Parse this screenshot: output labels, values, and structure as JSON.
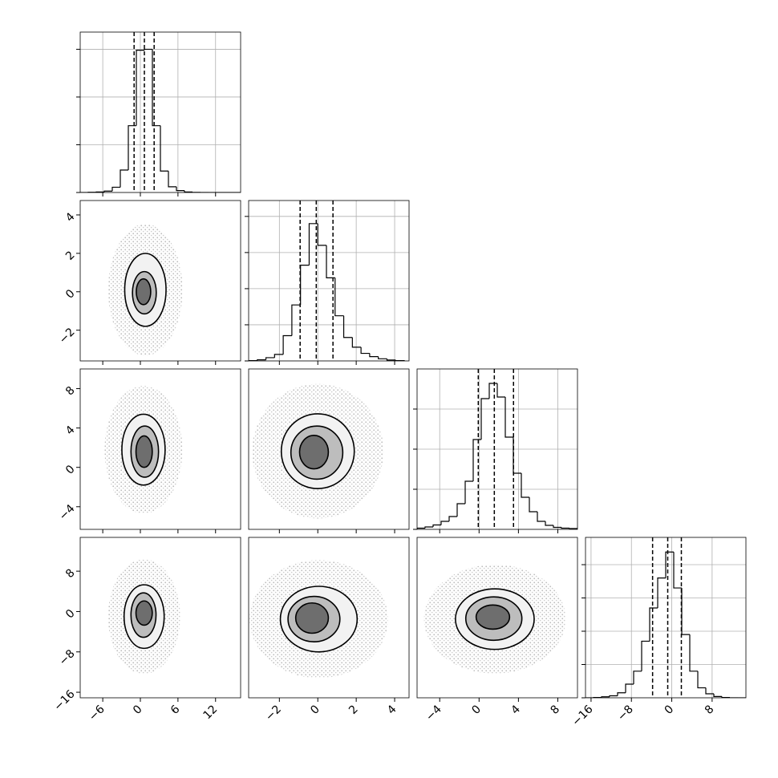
{
  "chart_data": {
    "type": "corner",
    "grid": true,
    "color": "#000000",
    "variables": [
      {
        "xlim": [
          -9.6,
          16
        ],
        "ticks": [
          {
            "value": -6,
            "label": "−6"
          },
          0,
          6,
          12
        ],
        "bins": [
          -9.6,
          -8.32,
          -7.04,
          -5.76,
          -4.48,
          -3.2,
          -1.92,
          -0.64,
          0.64,
          1.92,
          3.2,
          4.48,
          5.76,
          7.04,
          8.32,
          9.6,
          10.88,
          12.16,
          13.44,
          14.72,
          16.0
        ],
        "counts": [
          0,
          5,
          10,
          30,
          110,
          470,
          1400,
          2980,
          3000,
          1400,
          450,
          120,
          40,
          10,
          3,
          0,
          0,
          0,
          0,
          0
        ],
        "quantiles": [
          -1.0,
          0.64,
          2.2
        ],
        "hist_ylim": [
          0,
          3360
        ],
        "hist_ticks": [
          0,
          1000,
          2000,
          3000
        ]
      },
      {
        "xlim": [
          -3.6,
          4.75
        ],
        "ticks": [
          {
            "value": -2,
            "label": "−2"
          },
          0,
          2,
          4
        ],
        "bins": [
          -3.6,
          -3.15,
          -2.7,
          -2.25,
          -1.8,
          -1.35,
          -0.9,
          -0.45,
          0,
          0.45,
          0.9,
          1.35,
          1.8,
          2.25,
          2.7,
          3.15,
          3.6,
          4.05,
          4.5
        ],
        "counts": [
          10,
          30,
          90,
          180,
          700,
          1550,
          2650,
          3800,
          3200,
          2300,
          1250,
          650,
          380,
          210,
          120,
          60,
          25,
          10
        ],
        "quantiles": [
          -0.92,
          -0.08,
          0.79
        ],
        "hist_ylim": [
          0,
          4440
        ],
        "hist_ticks": [
          0,
          1000,
          2000,
          3000,
          4000
        ]
      },
      {
        "xlim": [
          -6.3,
          10
        ],
        "ticks": [
          {
            "value": -4,
            "label": "−4"
          },
          0,
          4,
          8
        ],
        "bins": [
          -6.3,
          -5.485,
          -4.67,
          -3.855,
          -3.04,
          -2.225,
          -1.41,
          -0.595,
          0.22,
          1.035,
          1.85,
          2.665,
          3.48,
          4.295,
          5.11,
          5.925,
          6.74,
          7.555,
          8.37,
          9.185,
          10.0
        ],
        "counts": [
          30,
          60,
          110,
          200,
          320,
          640,
          1200,
          2240,
          3260,
          3640,
          3300,
          2300,
          1400,
          800,
          440,
          200,
          100,
          50,
          30,
          20
        ],
        "quantiles": [
          -0.08,
          1.55,
          3.5
        ],
        "hist_ylim": [
          0,
          4000
        ],
        "hist_ticks": [
          0,
          1000,
          2000,
          3000
        ]
      },
      {
        "xlim": [
          -17.1,
          14.7
        ],
        "ticks": [
          {
            "value": -16,
            "label": "−16"
          },
          {
            "value": -8,
            "label": "−8"
          },
          0,
          8
        ],
        "bins": [
          -17.1,
          -15.51,
          -13.92,
          -12.33,
          -10.74,
          -9.15,
          -7.56,
          -5.97,
          -4.38,
          -2.79,
          -1.2,
          0.39,
          1.98,
          3.57,
          5.16,
          6.75,
          8.34,
          9.93,
          11.52,
          13.11,
          14.7
        ],
        "counts": [
          0,
          10,
          30,
          60,
          150,
          410,
          800,
          1700,
          2700,
          3600,
          4380,
          3300,
          1900,
          800,
          300,
          120,
          40,
          10,
          0,
          0
        ],
        "quantiles": [
          -3.8,
          -0.8,
          1.9
        ],
        "hist_ylim": [
          0,
          4820
        ],
        "hist_ticks": [
          0,
          1000,
          2000,
          3000,
          4000
        ]
      }
    ],
    "pairs": [
      [
        [
          {
            "cx": 0.8,
            "cy": 0.1,
            "rx": 3.3,
            "ry": 1.9
          },
          {
            "cx": 0.64,
            "cy": -0.05,
            "rx": 1.9,
            "ry": 1.1
          },
          {
            "cx": 0.5,
            "cy": 0.0,
            "rx": 1.15,
            "ry": 0.67
          }
        ]
      ],
      [
        [
          {
            "cx": 0.5,
            "cy": 1.8,
            "rx": 3.45,
            "ry": 3.6
          },
          {
            "cx": 0.7,
            "cy": 1.6,
            "rx": 2.2,
            "ry": 2.6
          },
          {
            "cx": 0.6,
            "cy": 1.6,
            "rx": 1.3,
            "ry": 1.6
          }
        ],
        [
          {
            "cx": 0.0,
            "cy": 1.64,
            "rx": 1.9,
            "ry": 3.8
          },
          {
            "cx": -0.05,
            "cy": 1.5,
            "rx": 1.35,
            "ry": 2.7
          },
          {
            "cx": -0.2,
            "cy": 1.55,
            "rx": 0.75,
            "ry": 1.7
          }
        ]
      ],
      [
        [
          {
            "cx": 0.6,
            "cy": -1.0,
            "rx": 3.2,
            "ry": 6.3
          },
          {
            "cx": 0.5,
            "cy": -0.7,
            "rx": 2.0,
            "ry": 4.4
          },
          {
            "cx": 0.6,
            "cy": -0.3,
            "rx": 1.3,
            "ry": 2.4
          }
        ],
        [
          {
            "cx": 0.05,
            "cy": -1.5,
            "rx": 2.0,
            "ry": 6.5
          },
          {
            "cx": -0.2,
            "cy": -1.5,
            "rx": 1.35,
            "ry": 4.5
          },
          {
            "cx": -0.3,
            "cy": -1.3,
            "rx": 0.85,
            "ry": 3.0
          }
        ],
        [
          {
            "cx": 1.6,
            "cy": -1.5,
            "rx": 4.0,
            "ry": 6.0
          },
          {
            "cx": 1.5,
            "cy": -1.4,
            "rx": 2.85,
            "ry": 4.3
          },
          {
            "cx": 1.4,
            "cy": -1.1,
            "rx": 1.7,
            "ry": 2.4
          }
        ]
      ]
    ]
  }
}
